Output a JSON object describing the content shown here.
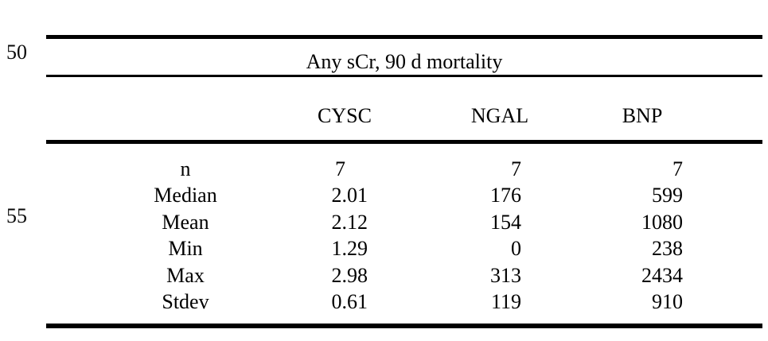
{
  "page": {
    "line_numbers": [
      "50",
      "55"
    ]
  },
  "table": {
    "title": "Any sCr, 90 d mortality",
    "columns": [
      "CYSC",
      "NGAL",
      "BNP"
    ],
    "rows": [
      {
        "label": "n",
        "values": [
          "7",
          "7",
          "7"
        ]
      },
      {
        "label": "Median",
        "values": [
          "2.01",
          "176",
          "599"
        ]
      },
      {
        "label": "Mean",
        "values": [
          "2.12",
          "154",
          "1080"
        ]
      },
      {
        "label": "Min",
        "values": [
          "1.29",
          "0",
          "238"
        ]
      },
      {
        "label": "Max",
        "values": [
          "2.98",
          "313",
          "2434"
        ]
      },
      {
        "label": "Stdev",
        "values": [
          "0.61",
          "119",
          "910"
        ]
      }
    ]
  }
}
